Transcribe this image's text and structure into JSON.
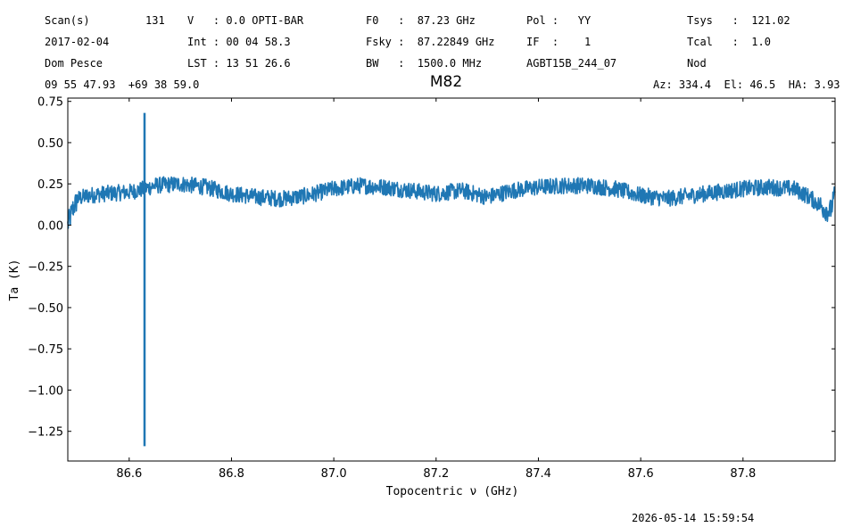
{
  "header": {
    "scan_label": "Scan(s)",
    "scan_value": "131",
    "date": "2017-02-04",
    "observer": "Dom Pesce",
    "coords": "09 55 47.93  +69 38 59.0",
    "v": "V   : 0.0 OPTI-BAR",
    "int": "Int : 00 04 58.3",
    "lst": "LST : 13 51 26.6",
    "f0": "F0   :  87.23 GHz",
    "fsky": "Fsky :  87.22849 GHz",
    "bw": "BW   :  1500.0 MHz",
    "pol": "Pol :   YY",
    "if": "IF  :    1",
    "project": "AGBT15B_244_07",
    "tsys": "Tsys   :  121.02",
    "tcal": "Tcal   :  1.0",
    "proc": "Nod",
    "azelha": "Az: 334.4  El: 46.5  HA: 3.93"
  },
  "footer": {
    "timestamp": "2026-05-14 15:59:54"
  },
  "colors": {
    "series": "#1f77b4"
  },
  "chart_data": {
    "type": "line",
    "title": "M82",
    "xlabel": "Topocentric ν (GHz)",
    "ylabel": "Ta (K)",
    "xlim": [
      86.48,
      87.98
    ],
    "ylim": [
      -1.43,
      0.77
    ],
    "xticks": [
      "86.6",
      "86.8",
      "87.0",
      "87.2",
      "87.4",
      "87.6",
      "87.8"
    ],
    "yticks": [
      "0.75",
      "0.50",
      "0.25",
      "0.00",
      "−0.25",
      "−0.50",
      "−0.75",
      "−1.00",
      "−1.25"
    ],
    "series": [
      {
        "x": [
          86.48,
          86.49,
          86.5,
          86.52,
          86.55,
          86.6,
          86.63,
          86.65,
          86.7,
          86.75,
          86.8,
          86.85,
          86.9,
          86.95,
          87.0,
          87.05,
          87.1,
          87.15,
          87.2,
          87.25,
          87.3,
          87.35,
          87.4,
          87.45,
          87.5,
          87.55,
          87.6,
          87.65,
          87.7,
          87.75,
          87.8,
          87.85,
          87.9,
          87.93,
          87.95,
          87.97,
          87.98
        ],
        "y": [
          0.0,
          0.1,
          0.16,
          0.18,
          0.19,
          0.2,
          0.22,
          0.24,
          0.25,
          0.23,
          0.19,
          0.17,
          0.16,
          0.18,
          0.22,
          0.24,
          0.23,
          0.21,
          0.19,
          0.21,
          0.17,
          0.21,
          0.23,
          0.24,
          0.24,
          0.22,
          0.18,
          0.16,
          0.18,
          0.2,
          0.22,
          0.23,
          0.22,
          0.17,
          0.12,
          0.08,
          0.18
        ],
        "noise_amplitude": 0.05
      }
    ],
    "spike": {
      "x": 86.63,
      "ymin": -1.34,
      "ymax": 0.68
    }
  }
}
